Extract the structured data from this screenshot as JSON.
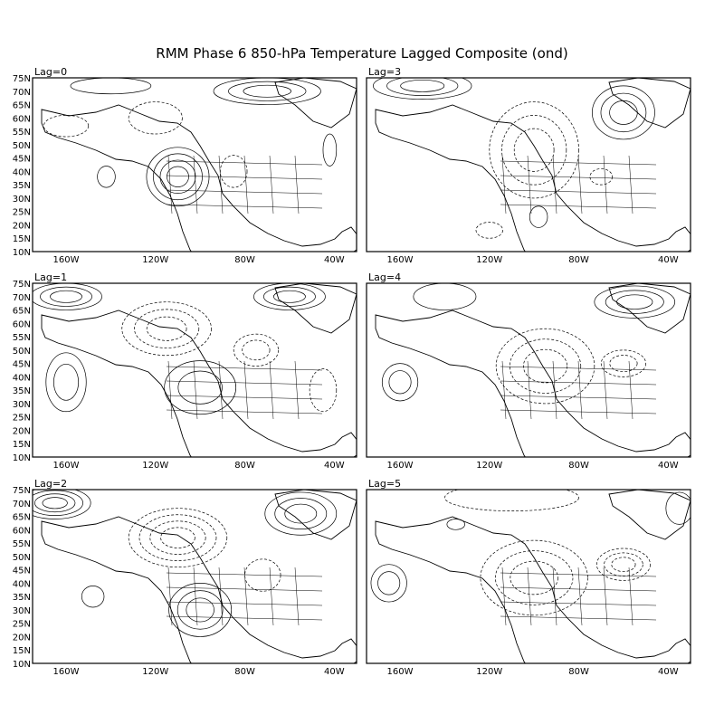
{
  "title": "RMM Phase 6 850-hPa Temperature Lagged Composite (ond)",
  "lat_labels": [
    "75N",
    "70N",
    "65N",
    "60N",
    "55N",
    "50N",
    "45N",
    "40N",
    "35N",
    "30N",
    "25N",
    "20N",
    "15N",
    "10N"
  ],
  "lon_labels": [
    "160W",
    "120W",
    "80W",
    "40W"
  ],
  "colors": {
    "warm": [
      "#fde9a4",
      "#fbc37f",
      "#f79c5c",
      "#ef6a30",
      "#e3341d"
    ],
    "cool": [
      "#d9f4fb",
      "#a9dbf5",
      "#7fbdf0",
      "#5a9ff0",
      "#3f80e8"
    ]
  },
  "map_extent": {
    "lon_min": -175,
    "lon_max": -30,
    "lat_min": 10,
    "lat_max": 75
  },
  "panels": [
    {
      "label": "Lag=0",
      "anomalies": [
        {
          "lon": -110,
          "lat": 38,
          "rx": 14,
          "ry": 11,
          "levels": 4
        },
        {
          "lon": -142,
          "lat": 38,
          "rx": 4,
          "ry": 4,
          "levels": 1
        },
        {
          "lon": -70,
          "lat": 70,
          "rx": 24,
          "ry": 5,
          "levels": 3
        },
        {
          "lon": -140,
          "lat": 72,
          "rx": 18,
          "ry": 3,
          "levels": 1
        },
        {
          "lon": -42,
          "lat": 48,
          "rx": 3,
          "ry": 6,
          "levels": 1
        },
        {
          "lon": -120,
          "lat": 60,
          "rx": 12,
          "ry": 6,
          "levels": -1
        },
        {
          "lon": -160,
          "lat": 57,
          "rx": 10,
          "ry": 4,
          "levels": -1
        },
        {
          "lon": -85,
          "lat": 40,
          "rx": 6,
          "ry": 6,
          "levels": -1
        }
      ]
    },
    {
      "label": "Lag=3",
      "anomalies": [
        {
          "lon": -100,
          "lat": 48,
          "rx": 20,
          "ry": 18,
          "levels": -3
        },
        {
          "lon": -150,
          "lat": 72,
          "rx": 22,
          "ry": 5,
          "levels": 3
        },
        {
          "lon": -60,
          "lat": 62,
          "rx": 14,
          "ry": 10,
          "levels": 3
        },
        {
          "lon": -98,
          "lat": 23,
          "rx": 4,
          "ry": 4,
          "levels": 1
        },
        {
          "lon": -120,
          "lat": 18,
          "rx": 6,
          "ry": 3,
          "levels": -1
        },
        {
          "lon": -70,
          "lat": 38,
          "rx": 5,
          "ry": 3,
          "levels": -1
        }
      ]
    },
    {
      "label": "Lag=1",
      "anomalies": [
        {
          "lon": -115,
          "lat": 58,
          "rx": 20,
          "ry": 10,
          "levels": -3
        },
        {
          "lon": -75,
          "lat": 50,
          "rx": 10,
          "ry": 6,
          "levels": -2
        },
        {
          "lon": -100,
          "lat": 36,
          "rx": 16,
          "ry": 10,
          "levels": 2
        },
        {
          "lon": -160,
          "lat": 38,
          "rx": 9,
          "ry": 11,
          "levels": 2
        },
        {
          "lon": -160,
          "lat": 70,
          "rx": 16,
          "ry": 5,
          "levels": 3
        },
        {
          "lon": -60,
          "lat": 70,
          "rx": 16,
          "ry": 5,
          "levels": 3
        },
        {
          "lon": -45,
          "lat": 35,
          "rx": 6,
          "ry": 8,
          "levels": -1
        }
      ]
    },
    {
      "label": "Lag=4",
      "anomalies": [
        {
          "lon": -95,
          "lat": 44,
          "rx": 22,
          "ry": 14,
          "levels": -3
        },
        {
          "lon": -60,
          "lat": 45,
          "rx": 10,
          "ry": 5,
          "levels": -2
        },
        {
          "lon": -160,
          "lat": 38,
          "rx": 8,
          "ry": 7,
          "levels": 2
        },
        {
          "lon": -140,
          "lat": 70,
          "rx": 14,
          "ry": 5,
          "levels": 1
        },
        {
          "lon": -55,
          "lat": 68,
          "rx": 18,
          "ry": 6,
          "levels": 3
        }
      ]
    },
    {
      "label": "Lag=2",
      "anomalies": [
        {
          "lon": -110,
          "lat": 57,
          "rx": 22,
          "ry": 11,
          "levels": -4
        },
        {
          "lon": -100,
          "lat": 30,
          "rx": 14,
          "ry": 10,
          "levels": 3
        },
        {
          "lon": -165,
          "lat": 70,
          "rx": 16,
          "ry": 6,
          "levels": 4
        },
        {
          "lon": -55,
          "lat": 66,
          "rx": 16,
          "ry": 8,
          "levels": 3
        },
        {
          "lon": -148,
          "lat": 35,
          "rx": 5,
          "ry": 4,
          "levels": 1
        },
        {
          "lon": -72,
          "lat": 43,
          "rx": 8,
          "ry": 6,
          "levels": -1
        }
      ]
    },
    {
      "label": "Lag=5",
      "anomalies": [
        {
          "lon": -100,
          "lat": 42,
          "rx": 24,
          "ry": 14,
          "levels": -3
        },
        {
          "lon": -60,
          "lat": 47,
          "rx": 12,
          "ry": 6,
          "levels": -3
        },
        {
          "lon": -165,
          "lat": 40,
          "rx": 8,
          "ry": 7,
          "levels": 2
        },
        {
          "lon": -110,
          "lat": 72,
          "rx": 30,
          "ry": 5,
          "levels": -1
        },
        {
          "lon": -35,
          "lat": 68,
          "rx": 6,
          "ry": 6,
          "levels": 1
        },
        {
          "lon": -135,
          "lat": 62,
          "rx": 4,
          "ry": 2,
          "levels": 1
        }
      ]
    }
  ]
}
